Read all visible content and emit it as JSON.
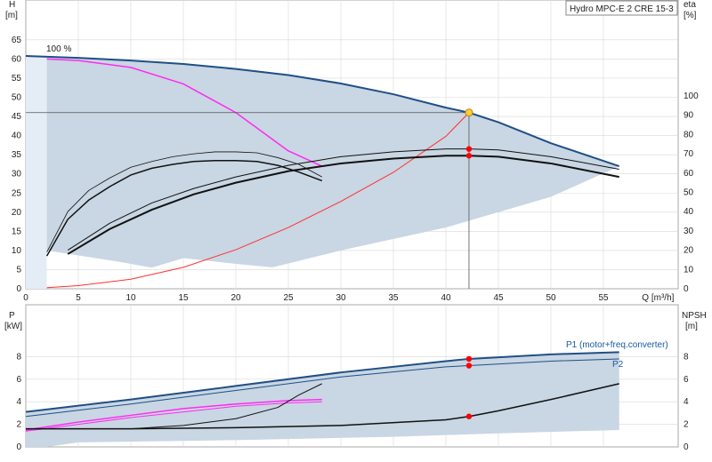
{
  "colors": {
    "area": "#c9d6e3",
    "area_light": "#e4edf6",
    "main_curve": "#1f4f86",
    "ratio": "#ff2bf0",
    "system": "#ff3030",
    "black": "#111111",
    "grid": "#d8d8d8",
    "duty_point": "#ffcc33",
    "marker": "#ff0000"
  },
  "chart_data": [
    {
      "type": "line",
      "name": "Q-H chart",
      "title": "Hydro MPC-E 2 CRE 15-3",
      "xlabel": "Q [m³/h]",
      "ylabel_left": "H\n[m]",
      "ylabel_right": "eta\n[%]",
      "xlim": [
        0,
        62
      ],
      "ylim_left": [
        0,
        69
      ],
      "ylim_right": [
        0,
        115
      ],
      "x_ticks": [
        "0",
        "5",
        "10",
        "15",
        "20",
        "25",
        "30",
        "35",
        "40",
        "45",
        "50",
        "55",
        "Q [m³/h]"
      ],
      "y_ticks_left": [
        "0",
        "5",
        "10",
        "15",
        "20",
        "25",
        "30",
        "35",
        "40",
        "45",
        "50",
        "55",
        "60",
        "65"
      ],
      "y_ticks_right": [
        "0",
        "10",
        "20",
        "30",
        "40",
        "50",
        "60",
        "70",
        "80",
        "90",
        "100"
      ],
      "annotation": "100 %",
      "series": [
        {
          "name": "",
          "role": "max-head",
          "x": [
            0,
            5,
            10,
            15,
            20,
            25,
            30,
            35,
            40,
            42.2,
            45,
            50,
            56.5
          ],
          "y": [
            60.8,
            60.3,
            59.6,
            58.7,
            57.4,
            55.8,
            53.6,
            50.8,
            47.3,
            46.0,
            43.5,
            38.0,
            32.0
          ]
        },
        {
          "name": "",
          "role": "single-pump-head",
          "x": [
            2,
            5,
            10,
            15,
            20,
            25,
            28.2
          ],
          "y": [
            60,
            59.6,
            57.8,
            53.5,
            46.0,
            36.0,
            32.0
          ]
        },
        {
          "name": "",
          "role": "system-curve",
          "x": [
            2,
            5,
            10,
            15,
            20,
            25,
            30,
            35,
            40,
            42.2
          ],
          "y": [
            0.3,
            0.8,
            2.5,
            5.6,
            10.2,
            16.0,
            22.8,
            30.4,
            39.8,
            46.0
          ]
        },
        {
          "name": "",
          "role": "eta-two-pumps",
          "x": [
            4,
            8,
            12,
            16,
            20,
            25,
            30,
            35,
            40,
            42.2,
            45,
            50,
            56.5
          ],
          "y": [
            18,
            31,
            41,
            49,
            55,
            61,
            65,
            67.5,
            69,
            69,
            68.5,
            65,
            58
          ]
        },
        {
          "name": "",
          "role": "eta-two-pumps-hydro",
          "x": [
            4,
            8,
            12,
            16,
            20,
            25,
            30,
            35,
            40,
            42.2,
            45,
            50,
            56.5
          ],
          "y": [
            20,
            34,
            44.5,
            52,
            58,
            64,
            68.5,
            71,
            72.5,
            72.5,
            72,
            68.5,
            62
          ]
        },
        {
          "name": "",
          "role": "eta-one-pump",
          "x": [
            2,
            4,
            6,
            8,
            10,
            12,
            14,
            16,
            18,
            20,
            22,
            24,
            26,
            28.2
          ],
          "y": [
            17,
            36,
            46,
            53,
            59,
            62.5,
            64.5,
            66,
            66.5,
            66.5,
            66,
            64,
            60.5,
            56
          ]
        },
        {
          "name": "",
          "role": "eta-one-pump-hydro",
          "x": [
            2,
            4,
            6,
            8,
            10,
            12,
            14,
            16,
            18,
            20,
            22,
            24,
            26,
            28.2
          ],
          "y": [
            19,
            40,
            51,
            57.5,
            63,
            66,
            68.5,
            70,
            71,
            71,
            70.5,
            68,
            64.5,
            58
          ]
        }
      ],
      "duty_point": {
        "x": 42.2,
        "y": 46.0
      },
      "eta_markers": [
        {
          "x": 42.2,
          "y": 72.5
        },
        {
          "x": 42.2,
          "y": 69
        }
      ]
    },
    {
      "type": "line",
      "name": "P-NPSH chart",
      "ylabel_left": "P\n[kW]",
      "ylabel_right": "NPSH\n[m]",
      "xlim": [
        0,
        62
      ],
      "ylim": [
        0,
        10
      ],
      "y_ticks_left": [
        "0",
        "2",
        "4",
        "6",
        "8"
      ],
      "y_ticks_right": [
        "0",
        "2",
        "4",
        "6",
        "8"
      ],
      "series": [
        {
          "name": "P1 (motor+freq.converter)",
          "x": [
            0,
            10,
            20,
            30,
            40,
            42.2,
            50,
            56.5
          ],
          "y": [
            3.1,
            4.2,
            5.4,
            6.6,
            7.6,
            7.8,
            8.2,
            8.4
          ]
        },
        {
          "name": "P2",
          "x": [
            0,
            10,
            20,
            30,
            40,
            42.2,
            50,
            56.5
          ],
          "y": [
            2.7,
            3.8,
            5.0,
            6.2,
            7.1,
            7.2,
            7.6,
            7.8
          ]
        },
        {
          "name": "",
          "role": "P1-one-pump",
          "x": [
            0,
            5,
            10,
            15,
            20,
            25,
            28.2
          ],
          "y": [
            1.5,
            2.2,
            2.8,
            3.4,
            3.8,
            4.1,
            4.2
          ]
        },
        {
          "name": "",
          "role": "P2-one-pump",
          "x": [
            0,
            5,
            10,
            15,
            20,
            25,
            28.2
          ],
          "y": [
            1.4,
            2.0,
            2.6,
            3.1,
            3.6,
            3.9,
            4.0
          ]
        },
        {
          "name": "",
          "role": "NPSH-one-pump",
          "x": [
            0,
            10,
            15,
            20,
            24,
            26,
            28.2
          ],
          "y": [
            1.6,
            1.6,
            1.9,
            2.5,
            3.5,
            4.6,
            5.6
          ]
        },
        {
          "name": "",
          "role": "NPSH",
          "x": [
            0,
            10,
            20,
            30,
            40,
            42.2,
            45,
            50,
            56.5
          ],
          "y": [
            1.6,
            1.6,
            1.7,
            1.9,
            2.4,
            2.7,
            3.2,
            4.2,
            5.6
          ]
        }
      ],
      "markers": [
        {
          "x": 42.2,
          "y": 7.8
        },
        {
          "x": 42.2,
          "y": 7.2
        },
        {
          "x": 42.2,
          "y": 2.7
        }
      ]
    }
  ]
}
